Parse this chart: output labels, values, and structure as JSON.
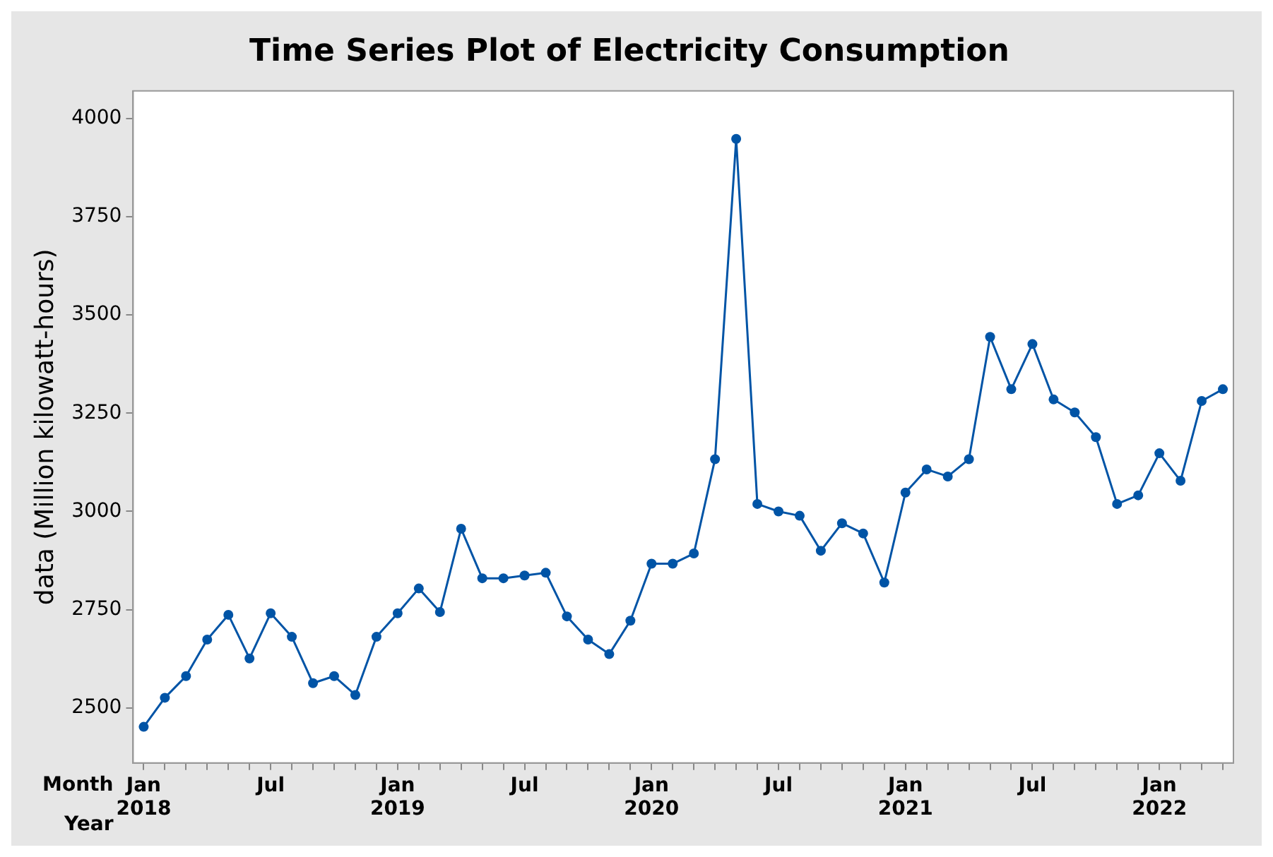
{
  "chart_data": {
    "type": "line",
    "title": "Time Series Plot of Electricity Consumption",
    "ylabel": "data (Million kilowatt-hours)",
    "categories": [
      "Jan 2018",
      null,
      null,
      null,
      null,
      null,
      "Jul",
      null,
      null,
      null,
      null,
      null,
      "Jan 2019",
      null,
      null,
      null,
      null,
      null,
      "Jul",
      null,
      null,
      null,
      null,
      null,
      "Jan 2020",
      null,
      null,
      null,
      null,
      null,
      "Jul",
      null,
      null,
      null,
      null,
      null,
      "Jan 2021",
      null,
      null,
      null,
      null,
      null,
      "Jul",
      null,
      null,
      null,
      null,
      null,
      "Jan 2022",
      null,
      null,
      null
    ],
    "series": [
      {
        "color": "#0054a6",
        "values": [
          2452,
          2526,
          2581,
          2674,
          2737,
          2626,
          2741,
          2681,
          2563,
          2581,
          2533,
          2681,
          2741,
          2804,
          2744,
          2956,
          2830,
          2830,
          2837,
          2844,
          2733,
          2674,
          2637,
          2722,
          2867,
          2867,
          2893,
          3133,
          3948,
          3019,
          3000,
          2989,
          2900,
          2970,
          2944,
          2819,
          3048,
          3107,
          3089,
          3133,
          3444,
          3311,
          3426,
          3285,
          3252,
          3189,
          3019,
          3041,
          3148,
          3078,
          3281,
          3311
        ]
      }
    ],
    "ylim": [
      2360,
      4070
    ],
    "yticks": [
      2500,
      2750,
      3000,
      3250,
      3500,
      3750,
      4000
    ],
    "annotations": [
      "Month",
      "Year"
    ],
    "marker": "circle",
    "line_style": "solid",
    "grid": false,
    "legend": false
  }
}
